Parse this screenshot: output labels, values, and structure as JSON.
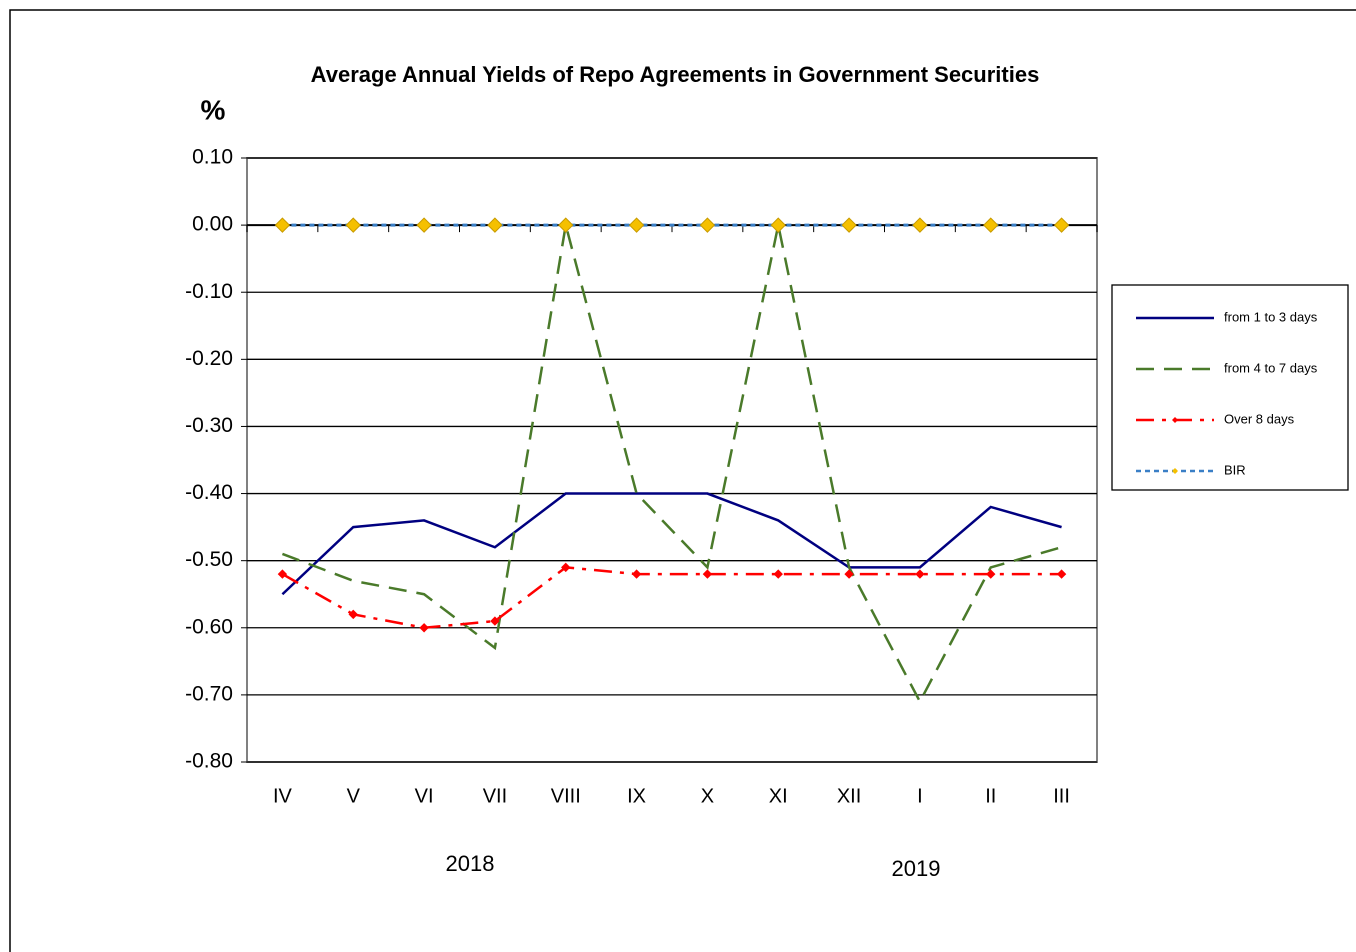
{
  "chart_data": {
    "type": "line",
    "title": "Average Annual Yields of Repo Agreements in Government Securities",
    "y_label": "%",
    "categories": [
      "IV",
      "V",
      "VI",
      "VII",
      "VIII",
      "IX",
      "X",
      "XI",
      "XII",
      "I",
      "II",
      "III"
    ],
    "annotations": [
      "2018",
      "2019"
    ],
    "series": [
      {
        "name": "from 1 to 3 days",
        "color": "#000080",
        "dash": "solid",
        "marker": "none",
        "values": [
          -0.55,
          -0.45,
          -0.44,
          -0.48,
          -0.4,
          -0.4,
          -0.4,
          -0.44,
          -0.51,
          -0.51,
          -0.42,
          -0.45
        ]
      },
      {
        "name": "from 4 to 7 days",
        "color": "#4a7a2a",
        "dash": "dashed",
        "marker": "none",
        "values": [
          -0.49,
          -0.53,
          -0.55,
          -0.63,
          0.0,
          -0.4,
          -0.51,
          0.0,
          -0.51,
          -0.71,
          -0.51,
          -0.48
        ]
      },
      {
        "name": "Over 8 days",
        "color": "#ff0000",
        "dash": "dashdot",
        "marker": "diamond",
        "marker_color": "#ff0000",
        "values": [
          -0.52,
          -0.58,
          -0.6,
          -0.59,
          -0.51,
          -0.52,
          -0.52,
          -0.52,
          -0.52,
          -0.52,
          -0.52,
          -0.52
        ]
      },
      {
        "name": "BIR",
        "color": "#3a7fc6",
        "dash": "dotted",
        "marker": "diamond",
        "marker_color": "#f5c000",
        "values": [
          0.0,
          0.0,
          0.0,
          0.0,
          0.0,
          0.0,
          0.0,
          0.0,
          0.0,
          0.0,
          0.0,
          0.0
        ]
      }
    ],
    "ylim": [
      -0.8,
      0.1
    ],
    "yticks": [
      {
        "value": 0.1,
        "label": "0.10"
      },
      {
        "value": 0,
        "label": "0.00"
      },
      {
        "value": -0.1,
        "label": "-0.10"
      },
      {
        "value": -0.2,
        "label": "-0.20"
      },
      {
        "value": -0.3,
        "label": "-0.30"
      },
      {
        "value": -0.4,
        "label": "-0.40"
      },
      {
        "value": -0.5,
        "label": "-0.50"
      },
      {
        "value": -0.6,
        "label": "-0.60"
      },
      {
        "value": -0.7,
        "label": "-0.70"
      },
      {
        "value": -0.8,
        "label": "-0.80"
      }
    ],
    "grid": true,
    "legend": "right"
  }
}
